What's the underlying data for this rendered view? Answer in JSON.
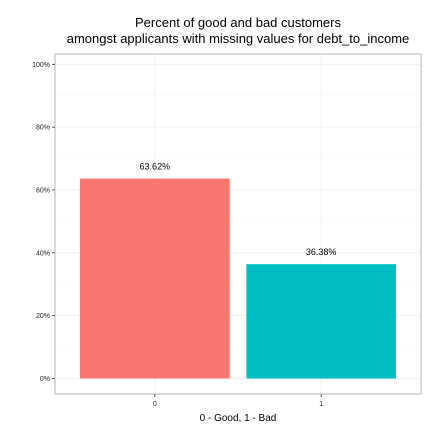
{
  "chart_data": {
    "type": "bar",
    "title_line1": "Percent of good and bad customers",
    "title_line2": "amongst applicants with missing values for debt_to_income",
    "xlabel": "0 - Good, 1 - Bad",
    "ylabel": "",
    "categories": [
      "0",
      "1"
    ],
    "values": [
      63.62,
      36.38
    ],
    "value_labels": [
      "63.62%",
      "36.38%"
    ],
    "bar_colors": [
      "#F8766D",
      "#00BFC4"
    ],
    "ylim": [
      0,
      100
    ],
    "y_ticks": [
      0,
      20,
      40,
      60,
      80,
      100
    ],
    "y_tick_labels": [
      "0%",
      "20%",
      "40%",
      "60%",
      "80%",
      "100%"
    ],
    "grid": true,
    "legend": "none"
  }
}
